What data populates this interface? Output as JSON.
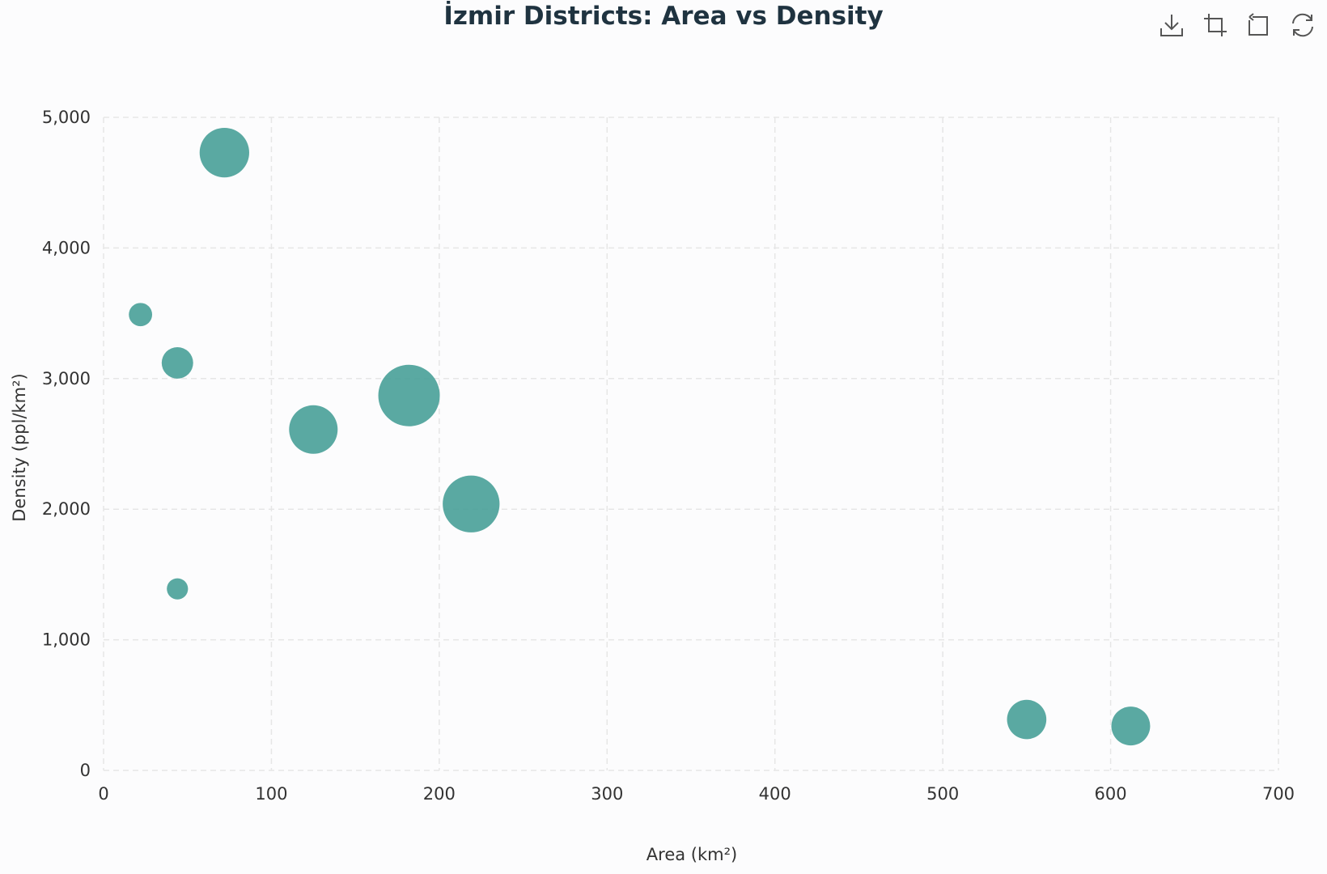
{
  "chart_data": {
    "type": "scatter",
    "title": "İzmir Districts: Area vs Density",
    "xlabel": "Area (km²)",
    "ylabel": "Density (ppl/km²)",
    "xlim": [
      0,
      700
    ],
    "ylim": [
      0,
      5000
    ],
    "x_ticks": [
      "0",
      "100",
      "200",
      "300",
      "400",
      "500",
      "600",
      "700"
    ],
    "y_ticks": [
      "0",
      "1,000",
      "2,000",
      "3,000",
      "4,000",
      "5,000"
    ],
    "grid": true,
    "bubble_color": "#4ca29a",
    "points": [
      {
        "x": 72,
        "y": 4730,
        "size": 340000
      },
      {
        "x": 22,
        "y": 3490,
        "size": 75000
      },
      {
        "x": 44,
        "y": 3120,
        "size": 137000
      },
      {
        "x": 44,
        "y": 1390,
        "size": 62000
      },
      {
        "x": 125,
        "y": 2610,
        "size": 326000
      },
      {
        "x": 182,
        "y": 2870,
        "size": 523000
      },
      {
        "x": 219,
        "y": 2040,
        "size": 447000
      },
      {
        "x": 550,
        "y": 390,
        "size": 214000
      },
      {
        "x": 612,
        "y": 340,
        "size": 208000
      }
    ]
  },
  "toolbox": {
    "save_icon": "download-icon",
    "zoom_icon": "data-zoom-icon",
    "back_icon": "zoom-back-icon",
    "restore_icon": "restore-icon"
  }
}
